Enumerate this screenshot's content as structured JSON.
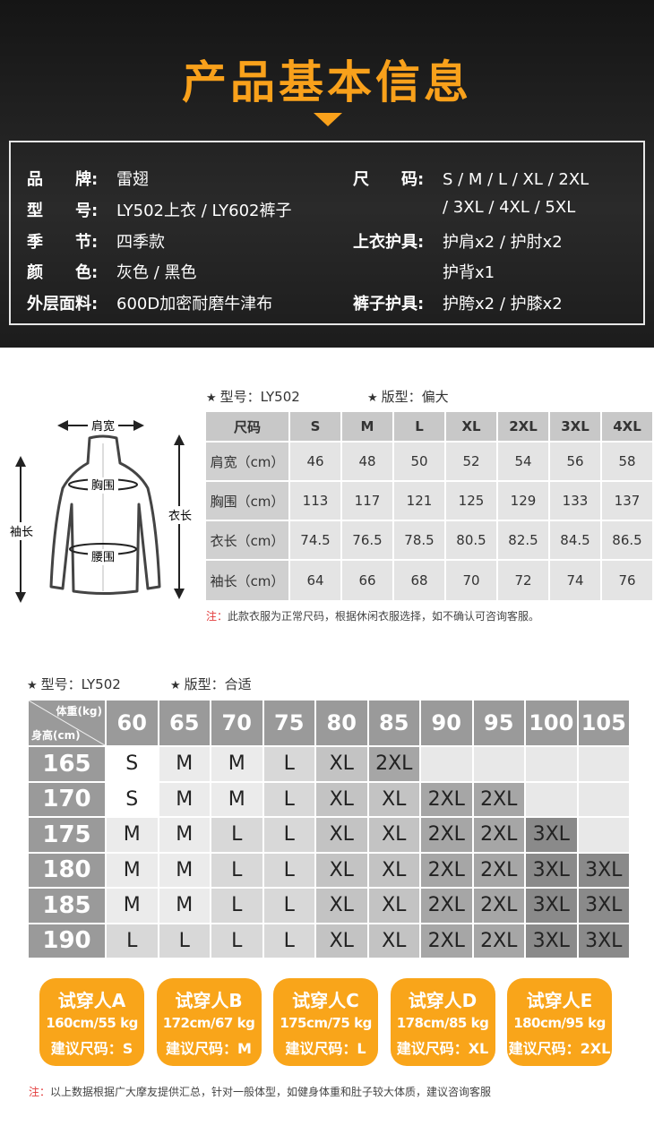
{
  "header": {
    "title": "产品基本信息"
  },
  "info": {
    "left": [
      {
        "label": "品　　牌:",
        "value": "雷翅"
      },
      {
        "label": "型　　号:",
        "value": "LY502上衣 / LY602裤子"
      },
      {
        "label": "季　　节:",
        "value": "四季款"
      },
      {
        "label": "颜　　色:",
        "value": "灰色 / 黑色"
      },
      {
        "label": "外层面料:",
        "value": "600D加密耐磨牛津布"
      }
    ],
    "right": [
      {
        "label": "尺　　码:",
        "value": "S / M / L / XL / 2XL",
        "value2": "/ 3XL / 4XL / 5XL"
      },
      {
        "label": "上衣护具:",
        "value": "护肩x2 / 护肘x2",
        "value2": "护背x1"
      },
      {
        "label": "裤子护具:",
        "value": "护胯x2 / 护膝x2"
      }
    ]
  },
  "diagram": {
    "shoulder": "肩宽",
    "chest": "胸围",
    "waist": "腰围",
    "sleeve": "袖长",
    "length": "衣长"
  },
  "size_table": {
    "model": "型号：LY502",
    "fit": "版型：偏大",
    "headers": [
      "尺码",
      "S",
      "M",
      "L",
      "XL",
      "2XL",
      "3XL",
      "4XL"
    ],
    "rows": [
      [
        "肩宽（cm）",
        "46",
        "48",
        "50",
        "52",
        "54",
        "56",
        "58"
      ],
      [
        "胸围（cm）",
        "113",
        "117",
        "121",
        "125",
        "129",
        "133",
        "137"
      ],
      [
        "衣长（cm）",
        "74.5",
        "76.5",
        "78.5",
        "80.5",
        "82.5",
        "84.5",
        "86.5"
      ],
      [
        "袖长（cm）",
        "64",
        "66",
        "68",
        "70",
        "72",
        "74",
        "76"
      ]
    ],
    "note_prefix": "注：",
    "note": "此款衣服为正常尺码，根据休闲衣服选择，如不确认可咨询客服。"
  },
  "fit_table": {
    "model": "型号：LY502",
    "fit": "版型：合适",
    "weight_label": "体重(kg)",
    "height_label": "身高(cm)",
    "weights": [
      "60",
      "65",
      "70",
      "75",
      "80",
      "85",
      "90",
      "95",
      "100",
      "105"
    ],
    "rows": [
      {
        "height": "165",
        "sizes": [
          "S",
          "M",
          "M",
          "L",
          "XL",
          "2XL",
          "",
          "",
          "",
          ""
        ]
      },
      {
        "height": "170",
        "sizes": [
          "S",
          "M",
          "M",
          "L",
          "XL",
          "XL",
          "2XL",
          "2XL",
          "",
          ""
        ]
      },
      {
        "height": "175",
        "sizes": [
          "M",
          "M",
          "L",
          "L",
          "XL",
          "XL",
          "2XL",
          "2XL",
          "3XL",
          ""
        ]
      },
      {
        "height": "180",
        "sizes": [
          "M",
          "M",
          "L",
          "L",
          "XL",
          "XL",
          "2XL",
          "2XL",
          "3XL",
          "3XL"
        ]
      },
      {
        "height": "185",
        "sizes": [
          "M",
          "M",
          "L",
          "L",
          "XL",
          "XL",
          "2XL",
          "2XL",
          "3XL",
          "3XL"
        ]
      },
      {
        "height": "190",
        "sizes": [
          "L",
          "L",
          "L",
          "L",
          "XL",
          "XL",
          "2XL",
          "2XL",
          "3XL",
          "3XL"
        ]
      }
    ],
    "size_colors": {
      "S": "#ffffff",
      "M": "#ebebeb",
      "L": "#d8d8d8",
      "XL": "#c3c3c3",
      "2XL": "#a6a6a6",
      "3XL": "#8a8a8a",
      "": "#e8e8e8"
    }
  },
  "testers": [
    {
      "name": "试穿人A",
      "measure": "160cm/55 kg",
      "size": "建议尺码：S"
    },
    {
      "name": "试穿人B",
      "measure": "172cm/67 kg",
      "size": "建议尺码：M"
    },
    {
      "name": "试穿人C",
      "measure": "175cm/75 kg",
      "size": "建议尺码：L"
    },
    {
      "name": "试穿人D",
      "measure": "178cm/85 kg",
      "size": "建议尺码：XL"
    },
    {
      "name": "试穿人E",
      "measure": "180cm/95 kg",
      "size": "建议尺码：2XL"
    }
  ],
  "footer": {
    "note_prefix": "注：",
    "note": "以上数据根据广大摩友提供汇总，针对一般体型，如健身体重和肚子较大体质，建议咨询客服"
  },
  "colors": {
    "accent": "#f9a11b",
    "header_bg": "#1e1e1e",
    "note_red": "#e23a3a"
  }
}
